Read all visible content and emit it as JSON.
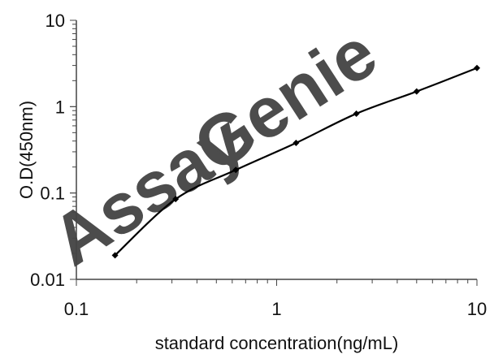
{
  "watermark": {
    "part1": "Assay",
    "part2": "Genie",
    "color1": "#9fd6f2",
    "color2": "#b9bec5"
  },
  "chart_data": {
    "type": "line",
    "xscale": "log",
    "yscale": "log",
    "xlim": [
      0.1,
      10
    ],
    "ylim": [
      0.01,
      10
    ],
    "xlabel": "standard concentration(ng/mL)",
    "ylabel": "O.D(450nm)",
    "xticks": [
      {
        "value": 0.1,
        "label": "0.1"
      },
      {
        "value": 1,
        "label": "1"
      },
      {
        "value": 10,
        "label": "10"
      }
    ],
    "yticks": [
      {
        "value": 0.01,
        "label": "0.01"
      },
      {
        "value": 0.1,
        "label": "0.1"
      },
      {
        "value": 1,
        "label": "1"
      },
      {
        "value": 10,
        "label": "10"
      }
    ],
    "grid": false,
    "line_color": "#000000",
    "series": [
      {
        "x": [
          0.156,
          0.313,
          0.625,
          1.25,
          2.5,
          5,
          10
        ],
        "y": [
          0.019,
          0.085,
          0.185,
          0.38,
          0.83,
          1.5,
          2.8
        ]
      }
    ]
  }
}
